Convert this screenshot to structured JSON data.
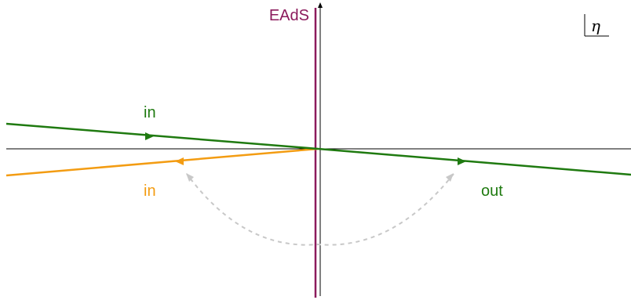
{
  "labels": {
    "boundary": "EAdS",
    "variable": "η",
    "green_in": "in",
    "orange_in": "in",
    "green_out": "out"
  },
  "colors": {
    "boundary": "#8b1a5c",
    "green": "#1f7a10",
    "orange": "#f39c12",
    "axis": "#000000",
    "arc": "#c8c8c8"
  }
}
